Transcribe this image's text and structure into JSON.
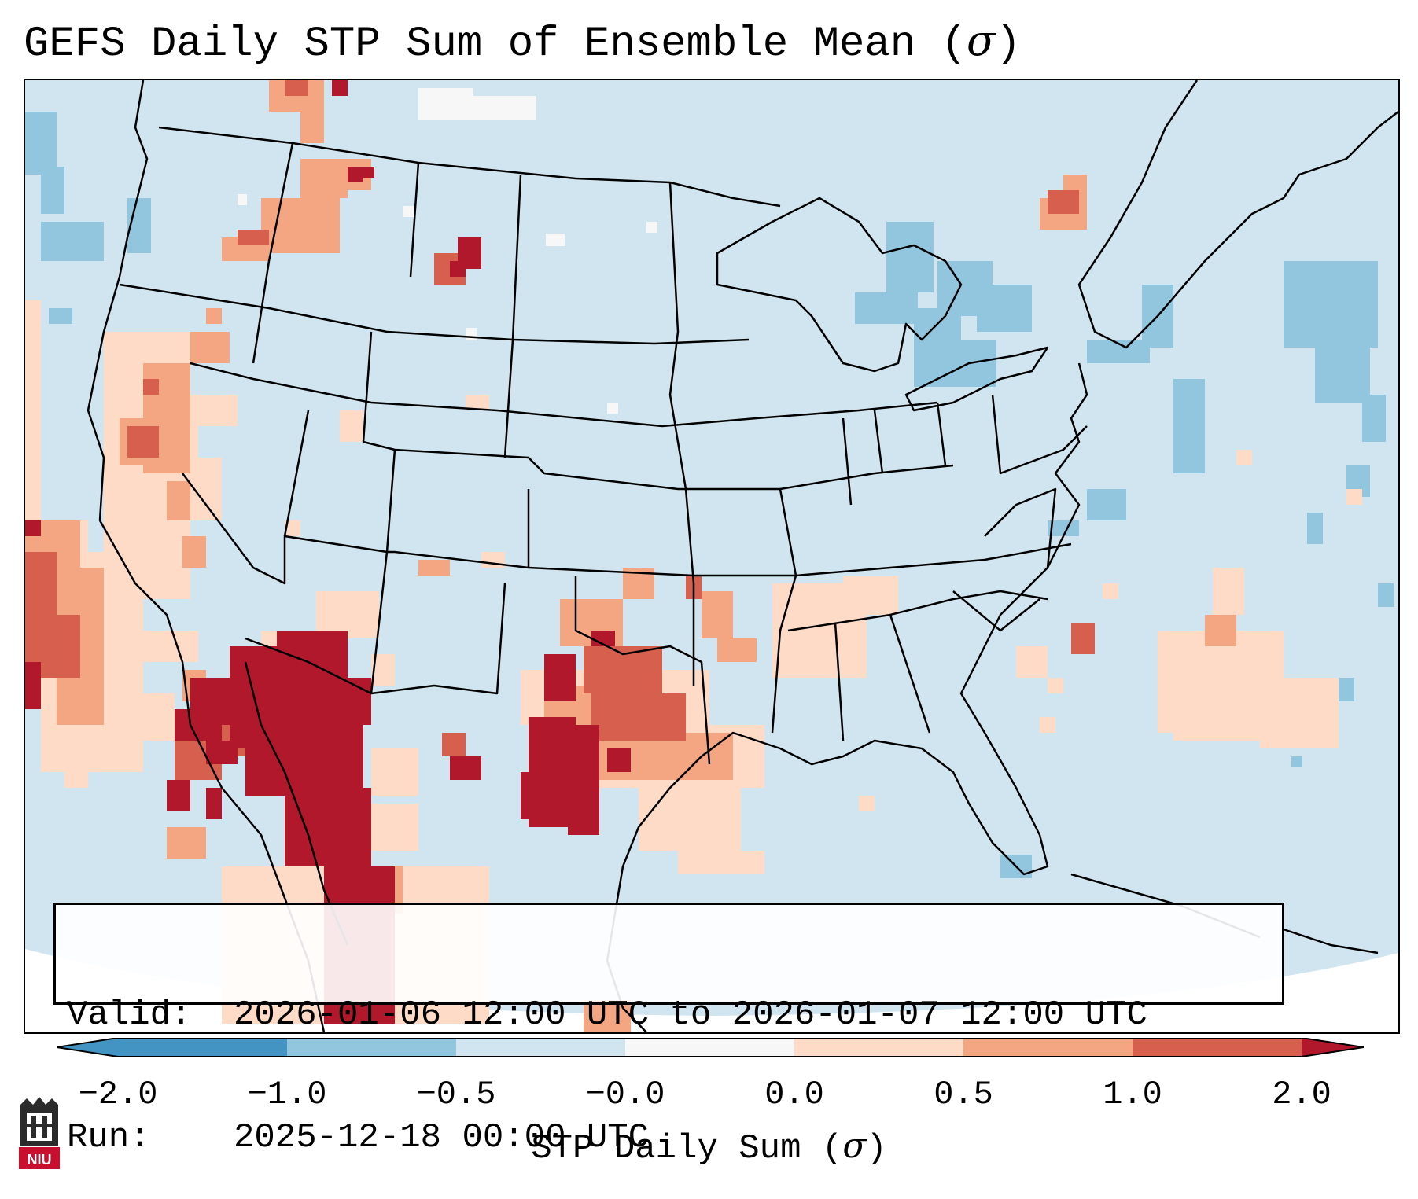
{
  "title": {
    "text": "GEFS Daily STP Sum of Ensemble Mean (",
    "symbol": "σ",
    "close": ")"
  },
  "info": {
    "valid_label": "Valid:",
    "valid_value": "2026-01-06 12:00 UTC to 2026-01-07 12:00 UTC",
    "run_label": "Run:",
    "run_value": "2025-12-18 00:00 UTC"
  },
  "colorbar": {
    "ticks": [
      "−2.0",
      "−1.0",
      "−0.5",
      "−0.0",
      "0.0",
      "0.5",
      "1.0",
      "2.0"
    ],
    "colors": [
      "#4393c3",
      "#92c5de",
      "#d1e5f0",
      "#f7f7f7",
      "#fddbc7",
      "#f4a582",
      "#d6604d",
      "#b2182b"
    ],
    "label_text": "STP Daily Sum (",
    "label_symbol": "σ",
    "label_close": ")"
  },
  "map_colors": {
    "background": "#d1e5f0",
    "light_blue": "#92c5de",
    "pale_red": "#fddbc7",
    "light_red": "#f4a582",
    "red": "#d6604d",
    "dark_red": "#b2182b"
  },
  "logo": {
    "text": "NIU"
  }
}
